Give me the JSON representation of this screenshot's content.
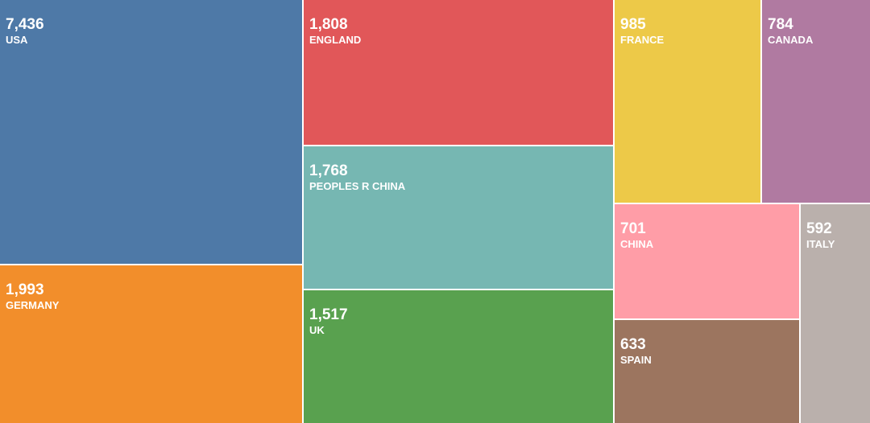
{
  "chart_data": {
    "type": "treemap",
    "title": "",
    "items": [
      {
        "label": "USA",
        "value": 7436,
        "display": "7,436",
        "color": "#4e79a7"
      },
      {
        "label": "GERMANY",
        "value": 1993,
        "display": "1,993",
        "color": "#f28e2b"
      },
      {
        "label": "ENGLAND",
        "value": 1808,
        "display": "1,808",
        "color": "#e15759"
      },
      {
        "label": "PEOPLES R CHINA",
        "value": 1768,
        "display": "1,768",
        "color": "#76b7b2"
      },
      {
        "label": "UK",
        "value": 1517,
        "display": "1,517",
        "color": "#59a14f"
      },
      {
        "label": "FRANCE",
        "value": 985,
        "display": "985",
        "color": "#edc948"
      },
      {
        "label": "CANADA",
        "value": 784,
        "display": "784",
        "color": "#b07aa1"
      },
      {
        "label": "CHINA",
        "value": 701,
        "display": "701",
        "color": "#ff9da7"
      },
      {
        "label": "SPAIN",
        "value": 633,
        "display": "633",
        "color": "#9c755f"
      },
      {
        "label": "ITALY",
        "value": 592,
        "display": "592",
        "color": "#bab0ac"
      }
    ]
  }
}
